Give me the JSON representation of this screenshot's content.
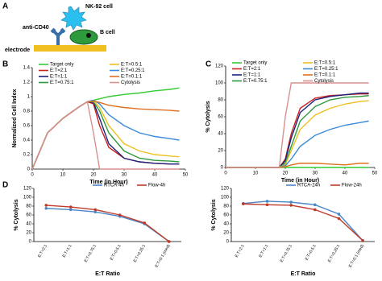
{
  "diagram": {
    "panel_label": "A",
    "nk_cell": "NK-92 cell",
    "antibody": "anti-CD40",
    "b_cell": "B cell",
    "electrode": "electrode"
  },
  "chart_data": [
    {
      "type": "line",
      "panel_label": "B",
      "xlabel": "Time (in Hour)",
      "ylabel": "Normalized Cell Index",
      "x": [
        0,
        5,
        10,
        15,
        18,
        20,
        22,
        25,
        30,
        35,
        40,
        45,
        48
      ],
      "xlim": [
        0,
        50
      ],
      "xticks": [
        0,
        10,
        20,
        30,
        40,
        50
      ],
      "ylim": [
        0,
        1.4
      ],
      "yticks": [
        0,
        0.2,
        0.4,
        0.6,
        0.8,
        1,
        1.2,
        1.4
      ],
      "legend": "top-left",
      "markers": false,
      "series": [
        {
          "name": "Target only",
          "color": "#33cc33",
          "values": [
            0,
            0.5,
            0.7,
            0.85,
            0.93,
            0.95,
            0.97,
            1.0,
            1.03,
            1.05,
            1.08,
            1.1,
            1.12
          ]
        },
        {
          "name": "E:T=2:1",
          "color": "#cc2222",
          "values": [
            0,
            0.5,
            0.7,
            0.85,
            0.93,
            0.9,
            0.6,
            0.3,
            0.15,
            0.1,
            0.08,
            0.07,
            0.07
          ]
        },
        {
          "name": "E:T=1:1",
          "color": "#1a237e",
          "values": [
            0,
            0.5,
            0.7,
            0.85,
            0.93,
            0.92,
            0.7,
            0.35,
            0.15,
            0.1,
            0.08,
            0.07,
            0.07
          ]
        },
        {
          "name": "E:T=0.75:1",
          "color": "#2e9a3e",
          "values": [
            0,
            0.5,
            0.7,
            0.85,
            0.93,
            0.93,
            0.8,
            0.5,
            0.25,
            0.15,
            0.12,
            0.11,
            0.1
          ]
        },
        {
          "name": "E:T=0.5:1",
          "color": "#f0c020",
          "values": [
            0,
            0.5,
            0.7,
            0.85,
            0.93,
            0.94,
            0.85,
            0.6,
            0.35,
            0.25,
            0.2,
            0.18,
            0.17
          ]
        },
        {
          "name": "E:T=0.25:1",
          "color": "#3a8ad8",
          "values": [
            0,
            0.5,
            0.7,
            0.85,
            0.93,
            0.95,
            0.9,
            0.75,
            0.6,
            0.5,
            0.45,
            0.42,
            0.4
          ]
        },
        {
          "name": "E:T=0.1:1",
          "color": "#e07020",
          "values": [
            0,
            0.5,
            0.7,
            0.85,
            0.93,
            0.94,
            0.92,
            0.88,
            0.85,
            0.83,
            0.82,
            0.81,
            0.8
          ]
        },
        {
          "name": "Cytolysis",
          "color": "#d89090",
          "values": [
            0,
            0.5,
            0.7,
            0.85,
            0.93,
            0.5,
            0,
            0,
            0,
            0,
            0,
            0,
            0
          ]
        }
      ]
    },
    {
      "type": "line",
      "panel_label": "C",
      "xlabel": "Time (in Hour)",
      "ylabel": "% Cytolysis",
      "x": [
        0,
        5,
        10,
        15,
        18,
        20,
        22,
        25,
        30,
        35,
        40,
        45,
        48
      ],
      "xlim": [
        0,
        50
      ],
      "xticks": [
        0,
        10,
        20,
        30,
        40,
        50
      ],
      "ylim": [
        0,
        120
      ],
      "yticks": [
        0,
        20,
        40,
        60,
        80,
        100,
        120
      ],
      "legend": "top-left",
      "markers": false,
      "series": [
        {
          "name": "Target only",
          "color": "#33cc33",
          "values": [
            0,
            0,
            0,
            0,
            0,
            0,
            0,
            0,
            0,
            0,
            0,
            0,
            0
          ]
        },
        {
          "name": "E:T=2:1",
          "color": "#cc2222",
          "values": [
            0,
            0,
            0,
            0,
            0,
            10,
            40,
            70,
            82,
            85,
            86,
            87,
            87
          ]
        },
        {
          "name": "E:T=1:1",
          "color": "#1a237e",
          "values": [
            0,
            0,
            0,
            0,
            0,
            8,
            35,
            65,
            80,
            84,
            86,
            88,
            88
          ]
        },
        {
          "name": "E:T=0.75:1",
          "color": "#2e9a3e",
          "values": [
            0,
            0,
            0,
            0,
            0,
            5,
            25,
            55,
            72,
            80,
            83,
            84,
            85
          ]
        },
        {
          "name": "E:T=0.5:1",
          "color": "#f0c020",
          "values": [
            0,
            0,
            0,
            0,
            0,
            3,
            20,
            45,
            62,
            70,
            75,
            78,
            79
          ]
        },
        {
          "name": "E:T=0.25:1",
          "color": "#3a8ad8",
          "values": [
            0,
            0,
            0,
            0,
            0,
            2,
            10,
            25,
            38,
            45,
            50,
            53,
            55
          ]
        },
        {
          "name": "E:T=0.1:1",
          "color": "#e07020",
          "values": [
            0,
            0,
            0,
            0,
            0,
            1,
            3,
            5,
            5,
            4,
            3,
            5,
            5
          ]
        },
        {
          "name": "Cytolysis",
          "color": "#d89090",
          "values": [
            0,
            0,
            0,
            0,
            0,
            60,
            100,
            100,
            100,
            100,
            100,
            100,
            100
          ]
        }
      ]
    },
    {
      "type": "line",
      "panel_label": "D",
      "xlabel": "E:T Ratio",
      "ylabel": "% Cytolysis",
      "categories": [
        "E:T=2:1",
        "E:T=1:1",
        "E:T=0.75:1",
        "E:T=0.5:1",
        "E:T=0.25:1",
        "E:T=0:1 (med)"
      ],
      "ylim": [
        0,
        120
      ],
      "yticks": [
        0,
        20,
        40,
        60,
        80,
        100,
        120
      ],
      "legend": "top-right",
      "markers": true,
      "series": [
        {
          "name": "RTCA-4h",
          "color": "#4a86c8",
          "values": [
            75,
            72,
            67,
            57,
            40,
            0
          ]
        },
        {
          "name": "Flow-4h",
          "color": "#c0392b",
          "values": [
            82,
            78,
            72,
            60,
            42,
            0
          ]
        }
      ]
    },
    {
      "type": "line",
      "xlabel": "E:T Ratio",
      "ylabel": "% Cytolysis",
      "categories": [
        "E:T=2:1",
        "E:T=1:1",
        "E:T=0.75:1",
        "E:T=0.5:1",
        "E:T=0.25:1",
        "E:T=0:1 (med)"
      ],
      "ylim": [
        0,
        120
      ],
      "yticks": [
        0,
        20,
        40,
        60,
        80,
        100,
        120
      ],
      "legend": "top-right",
      "markers": true,
      "series": [
        {
          "name": "RTCA-24h",
          "color": "#4a86c8",
          "values": [
            86,
            91,
            89,
            83,
            62,
            2
          ]
        },
        {
          "name": "Flow-24h",
          "color": "#c0392b",
          "values": [
            85,
            83,
            82,
            72,
            52,
            2
          ]
        }
      ]
    }
  ]
}
